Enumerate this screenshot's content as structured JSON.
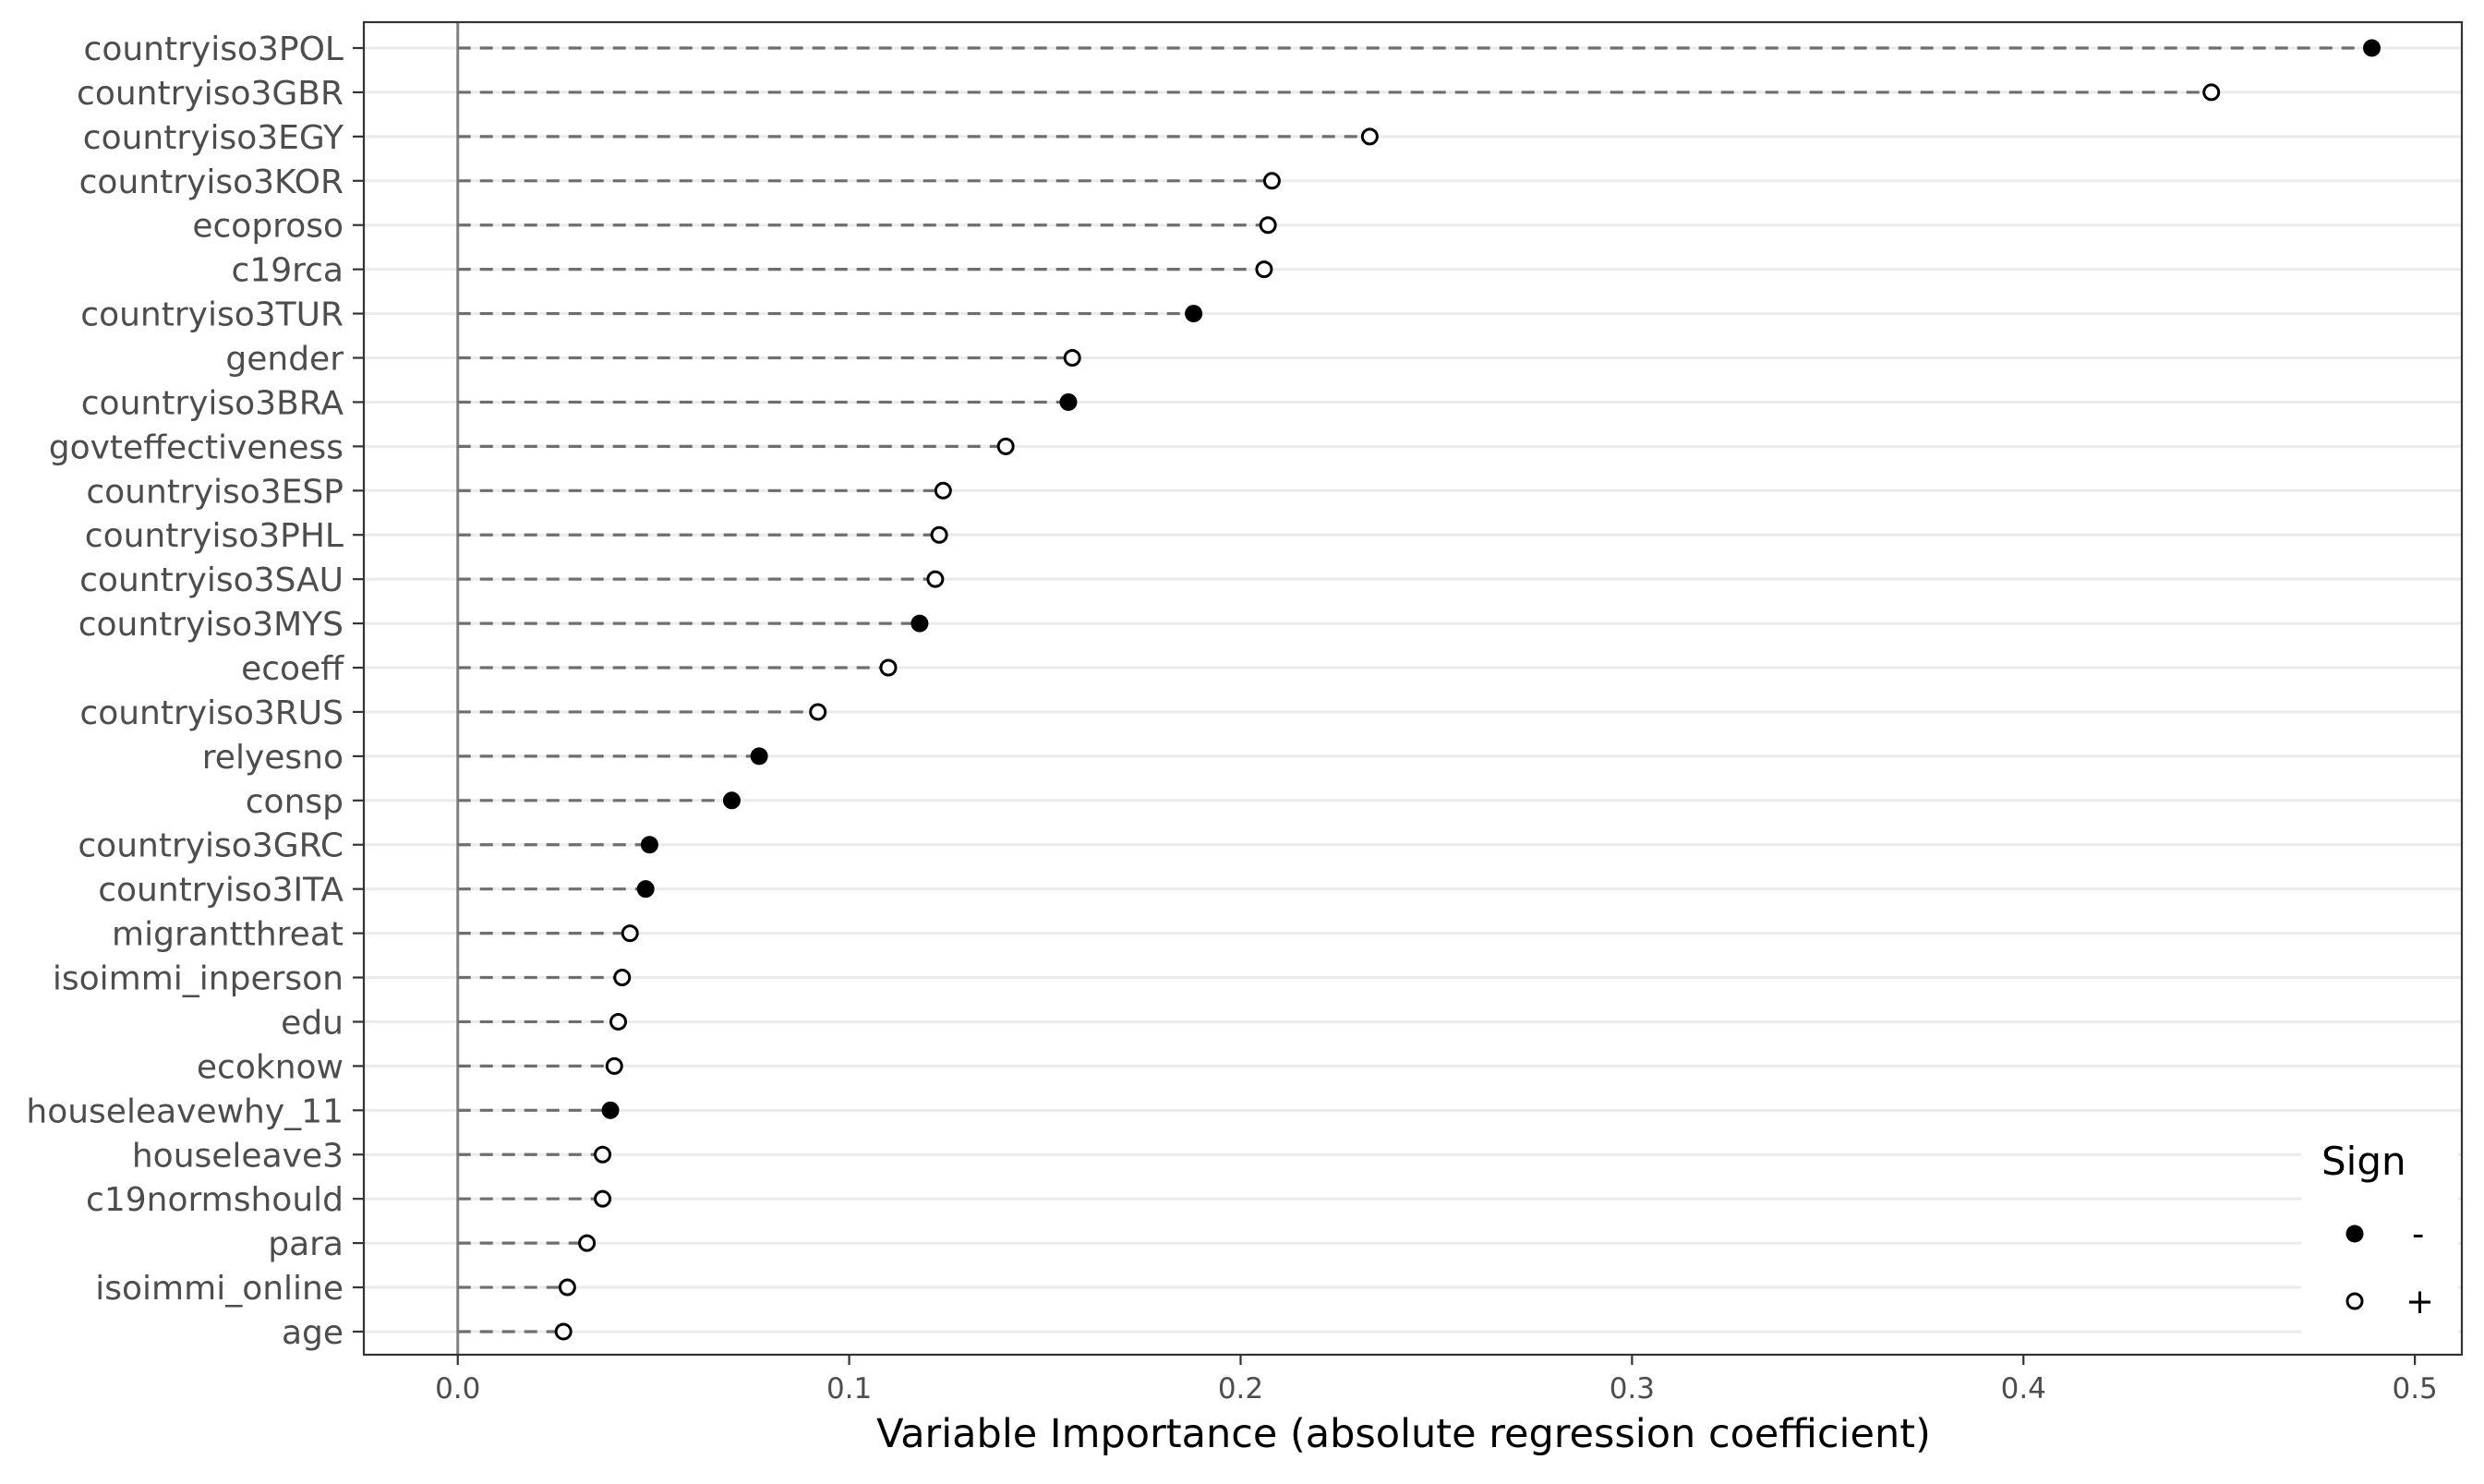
{
  "chart_data": {
    "type": "scatter",
    "subtype": "dot-plot",
    "title": "",
    "xlabel": "Variable Importance (absolute regression coefficient)",
    "ylabel": "",
    "xlim": [
      -0.024,
      0.512
    ],
    "xticks": [
      0.0,
      0.1,
      0.2,
      0.3,
      0.4,
      0.5
    ],
    "xtick_labels": [
      "0.0",
      "0.1",
      "0.2",
      "0.3",
      "0.4",
      "0.5"
    ],
    "grid": true,
    "legend": {
      "title": "Sign",
      "placement": "bottom-right",
      "entries": [
        {
          "label": "-",
          "marker": "filled-circle"
        },
        {
          "label": "+",
          "marker": "open-circle"
        }
      ]
    },
    "colors": {
      "point": "#000000",
      "segment": "#6e6e6e",
      "gridline": "#ebebeb",
      "zero_line": "#808080",
      "panel_border": "#333333"
    },
    "points": [
      {
        "variable": "countryiso3POL",
        "value": 0.489,
        "sign": "-"
      },
      {
        "variable": "countryiso3GBR",
        "value": 0.448,
        "sign": "+"
      },
      {
        "variable": "countryiso3EGY",
        "value": 0.233,
        "sign": "+"
      },
      {
        "variable": "countryiso3KOR",
        "value": 0.208,
        "sign": "+"
      },
      {
        "variable": "ecoproso",
        "value": 0.207,
        "sign": "+"
      },
      {
        "variable": "c19rca",
        "value": 0.206,
        "sign": "+"
      },
      {
        "variable": "countryiso3TUR",
        "value": 0.188,
        "sign": "-"
      },
      {
        "variable": "gender",
        "value": 0.157,
        "sign": "+"
      },
      {
        "variable": "countryiso3BRA",
        "value": 0.156,
        "sign": "-"
      },
      {
        "variable": "govteffectiveness",
        "value": 0.14,
        "sign": "+"
      },
      {
        "variable": "countryiso3ESP",
        "value": 0.124,
        "sign": "+"
      },
      {
        "variable": "countryiso3PHL",
        "value": 0.123,
        "sign": "+"
      },
      {
        "variable": "countryiso3SAU",
        "value": 0.122,
        "sign": "+"
      },
      {
        "variable": "countryiso3MYS",
        "value": 0.118,
        "sign": "-"
      },
      {
        "variable": "ecoeff",
        "value": 0.11,
        "sign": "+"
      },
      {
        "variable": "countryiso3RUS",
        "value": 0.092,
        "sign": "+"
      },
      {
        "variable": "relyesno",
        "value": 0.077,
        "sign": "-"
      },
      {
        "variable": "consp",
        "value": 0.07,
        "sign": "-"
      },
      {
        "variable": "countryiso3GRC",
        "value": 0.049,
        "sign": "-"
      },
      {
        "variable": "countryiso3ITA",
        "value": 0.048,
        "sign": "-"
      },
      {
        "variable": "migrantthreat",
        "value": 0.044,
        "sign": "+"
      },
      {
        "variable": "isoimmi_inperson",
        "value": 0.042,
        "sign": "+"
      },
      {
        "variable": "edu",
        "value": 0.041,
        "sign": "+"
      },
      {
        "variable": "ecoknow",
        "value": 0.04,
        "sign": "+"
      },
      {
        "variable": "houseleavewhy_11",
        "value": 0.039,
        "sign": "-"
      },
      {
        "variable": "houseleave3",
        "value": 0.037,
        "sign": "+"
      },
      {
        "variable": "c19normshould",
        "value": 0.037,
        "sign": "+"
      },
      {
        "variable": "para",
        "value": 0.033,
        "sign": "+"
      },
      {
        "variable": "isoimmi_online",
        "value": 0.028,
        "sign": "+"
      },
      {
        "variable": "age",
        "value": 0.027,
        "sign": "+"
      }
    ]
  }
}
